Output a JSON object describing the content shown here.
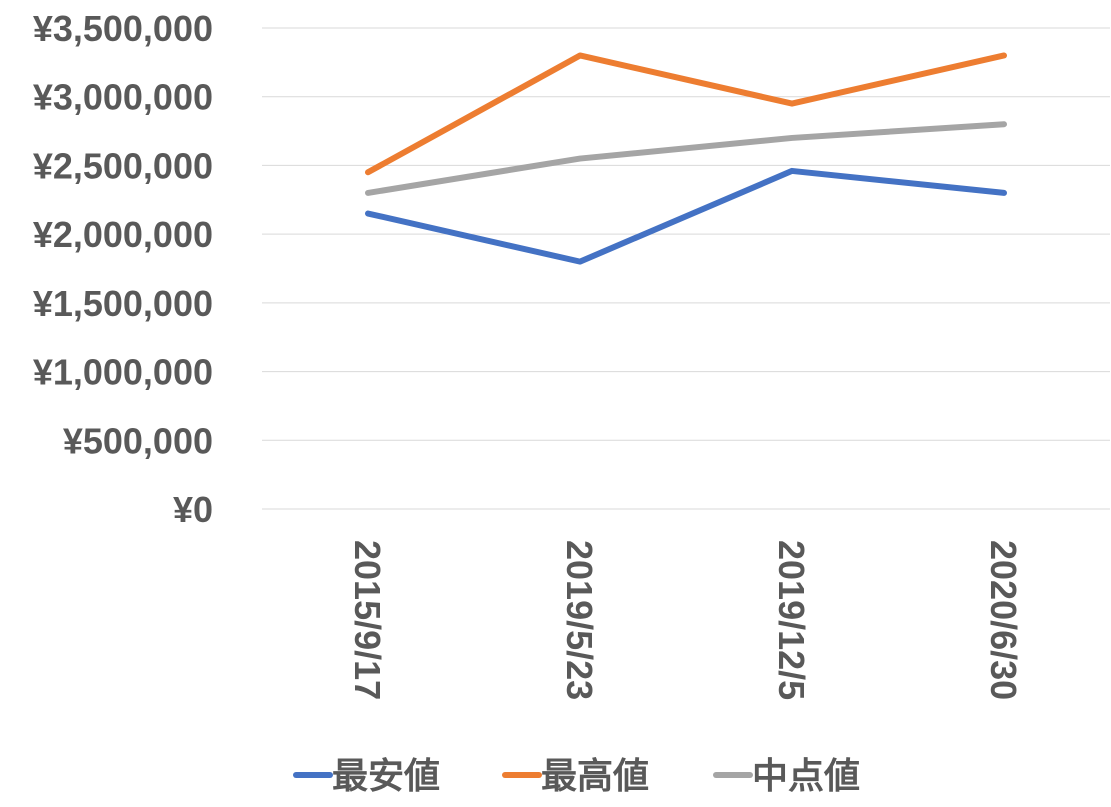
{
  "chart_data": {
    "type": "line",
    "title": "",
    "xlabel": "",
    "ylabel": "",
    "categories": [
      "2015/9/17",
      "2019/5/23",
      "2019/12/5",
      "2020/6/30"
    ],
    "ylim": [
      0,
      3500000
    ],
    "y_ticks": [
      0,
      500000,
      1000000,
      1500000,
      2000000,
      2500000,
      3000000,
      3500000
    ],
    "y_tick_labels": [
      "¥0",
      "¥500,000",
      "¥1,000,000",
      "¥1,500,000",
      "¥2,000,000",
      "¥2,500,000",
      "¥3,000,000",
      "¥3,500,000"
    ],
    "grid": true,
    "legend_position": "bottom",
    "series": [
      {
        "name": "最安値",
        "color": "#4472c4",
        "values": [
          2150000,
          1800000,
          2460000,
          2300000
        ]
      },
      {
        "name": "最高値",
        "color": "#ed7d31",
        "values": [
          2450000,
          3300000,
          2950000,
          3300000
        ]
      },
      {
        "name": "中点値",
        "color": "#a5a5a5",
        "values": [
          2300000,
          2550000,
          2700000,
          2800000
        ]
      }
    ]
  }
}
